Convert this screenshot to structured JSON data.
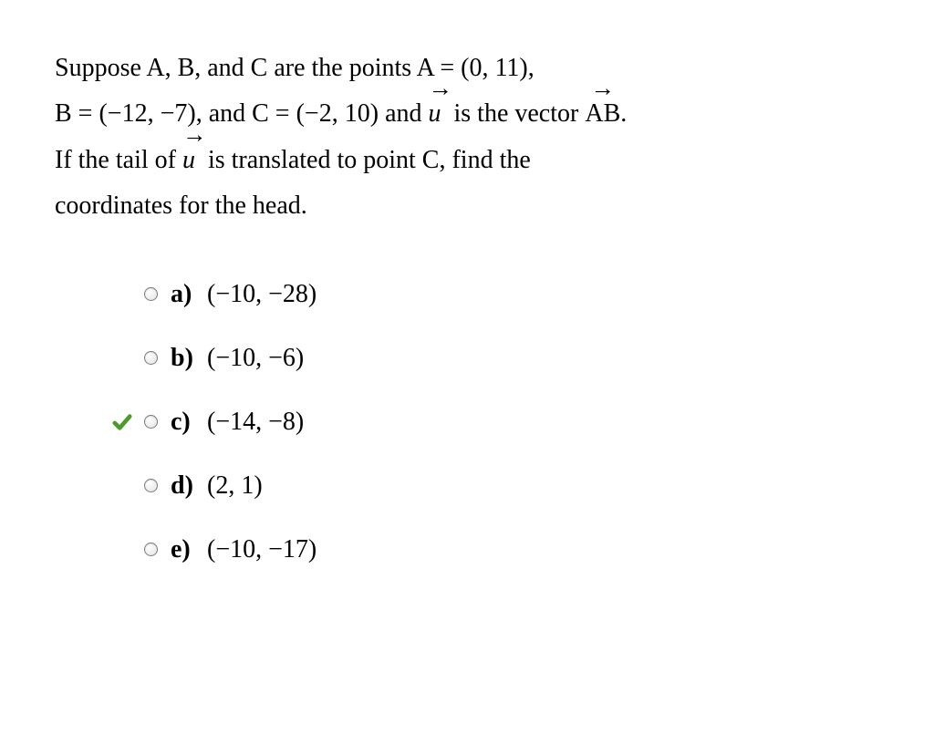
{
  "question": {
    "line1_pre": "Suppose A, B, and C are the points A = ",
    "pointA": "(0, 11)",
    "line1_post": ",",
    "line2_pre": "B = ",
    "pointB": "(−12, −7)",
    "line2_mid": ", and C = ",
    "pointC": "(−2, 10)",
    "line2_and": " and ",
    "vec_u": "u",
    "line2_isvector": " is the vector ",
    "vec_AB": "AB",
    "line2_end": ".",
    "line3_pre": "If the tail of ",
    "line3_post": " is translated to point C, find the",
    "line4": "coordinates for the head."
  },
  "options": [
    {
      "label": "a)",
      "value": "(−10, −28)",
      "correct": false
    },
    {
      "label": "b)",
      "value": "(−10, −6)",
      "correct": false
    },
    {
      "label": "c)",
      "value": "(−14, −8)",
      "correct": true
    },
    {
      "label": "d)",
      "value": "(2, 1)",
      "correct": false
    },
    {
      "label": "e)",
      "value": "(−10, −17)",
      "correct": false
    }
  ],
  "style": {
    "check_color": "#4a9b2e",
    "text_color": "#000000",
    "background": "#ffffff",
    "question_fontsize": 28,
    "option_fontsize": 28
  }
}
